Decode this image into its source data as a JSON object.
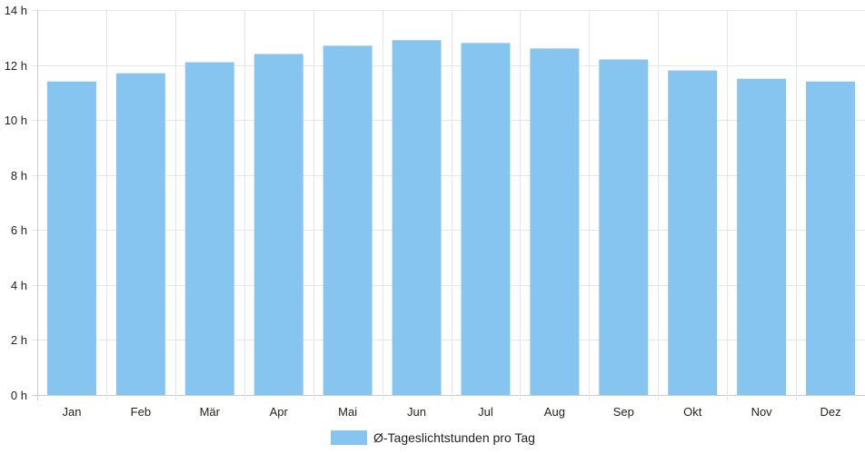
{
  "chart_data": {
    "type": "bar",
    "categories": [
      "Jan",
      "Feb",
      "Mär",
      "Apr",
      "Mai",
      "Jun",
      "Jul",
      "Aug",
      "Sep",
      "Okt",
      "Nov",
      "Dez"
    ],
    "series": [
      {
        "name": "Ø-Tageslichtstunden pro Tag",
        "values": [
          11.4,
          11.7,
          12.1,
          12.4,
          12.7,
          12.9,
          12.8,
          12.6,
          12.2,
          11.8,
          11.5,
          11.4
        ]
      }
    ],
    "ylim": [
      0,
      14
    ],
    "yticks": [
      0,
      2,
      4,
      6,
      8,
      10,
      12,
      14
    ],
    "ytick_labels": [
      "0 h",
      "2 h",
      "4 h",
      "6 h",
      "8 h",
      "10 h",
      "12 h",
      "14 h"
    ],
    "grid": true,
    "legend_position": "bottom",
    "colors": {
      "bar": "#86c5f0",
      "grid": "#e6e6e6",
      "axis": "#cccccc",
      "text": "#222222"
    }
  }
}
